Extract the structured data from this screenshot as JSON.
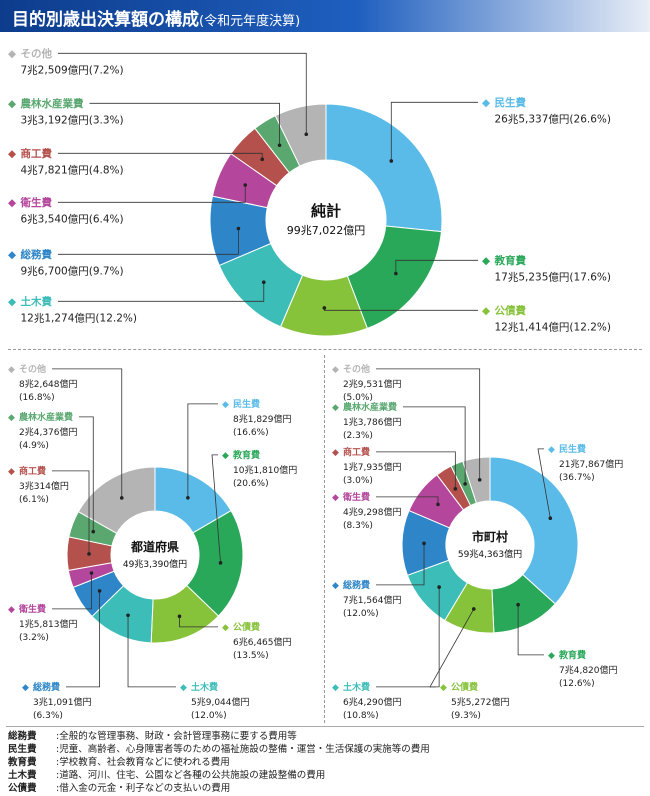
{
  "header": {
    "title": "目的別歳出決算額の構成",
    "subtitle": "(令和元年度決算)"
  },
  "colors": {
    "民生費": "#5bbbe8",
    "教育費": "#2aa85a",
    "公債費": "#86c23a",
    "土木費": "#3dbdb8",
    "総務費": "#2e86c8",
    "衛生費": "#b4479c",
    "商工費": "#b5514d",
    "農林水産業費": "#5aa870",
    "その他": "#b4b4b4"
  },
  "chart_data": [
    {
      "type": "pie",
      "title": "純計",
      "total_label": "99兆7,022億円",
      "categories": [
        "民生費",
        "教育費",
        "公債費",
        "土木費",
        "総務費",
        "衛生費",
        "商工費",
        "農林水産業費",
        "その他"
      ],
      "values": [
        26.6,
        17.6,
        12.2,
        12.2,
        9.7,
        6.4,
        4.8,
        3.3,
        7.2
      ],
      "amounts": [
        "26兆5,337億円",
        "17兆5,235億円",
        "12兆1,414億円",
        "12兆1,274億円",
        "9兆6,700億円",
        "6兆3,540億円",
        "4兆7,821億円",
        "3兆3,192億円",
        "7兆2,509億円"
      ],
      "percents": [
        "(26.6%)",
        "(17.6%)",
        "(12.2%)",
        "(12.2%)",
        "(9.7%)",
        "(6.4%)",
        "(4.8%)",
        "(3.3%)",
        "(7.2%)"
      ]
    },
    {
      "type": "pie",
      "title": "都道府県",
      "total_label": "49兆3,390億円",
      "categories": [
        "民生費",
        "教育費",
        "公債費",
        "土木費",
        "総務費",
        "衛生費",
        "商工費",
        "農林水産業費",
        "その他"
      ],
      "values": [
        16.6,
        20.6,
        13.5,
        12.0,
        6.3,
        3.2,
        6.1,
        4.9,
        16.8
      ],
      "amounts": [
        "8兆1,829億円",
        "10兆1,810億円",
        "6兆6,465億円",
        "5兆9,044億円",
        "3兆1,091億円",
        "1兆5,813億円",
        "3兆314億円",
        "2兆4,376億円",
        "8兆2,648億円"
      ],
      "percents": [
        "(16.6%)",
        "(20.6%)",
        "(13.5%)",
        "(12.0%)",
        "(6.3%)",
        "(3.2%)",
        "(6.1%)",
        "(4.9%)",
        "(16.8%)"
      ]
    },
    {
      "type": "pie",
      "title": "市町村",
      "total_label": "59兆4,363億円",
      "categories": [
        "民生費",
        "教育費",
        "公債費",
        "土木費",
        "総務費",
        "衛生費",
        "商工費",
        "農林水産業費",
        "その他"
      ],
      "values": [
        36.7,
        12.6,
        9.3,
        10.8,
        12.0,
        8.3,
        3.0,
        2.3,
        5.0
      ],
      "amounts": [
        "21兆7,867億円",
        "7兆4,820億円",
        "5兆5,272億円",
        "6兆4,290億円",
        "7兆1,564億円",
        "4兆9,298億円",
        "1兆7,935億円",
        "1兆3,786億円",
        "2兆9,531億円"
      ],
      "percents": [
        "(36.7%)",
        "(12.6%)",
        "(9.3%)",
        "(10.8%)",
        "(12.0%)",
        "(8.3%)",
        "(3.0%)",
        "(2.3%)",
        "(5.0%)"
      ]
    }
  ],
  "notes": [
    {
      "term": "総務費",
      "desc": ":全般的な管理事務、財政・会計管理事務に要する費用等"
    },
    {
      "term": "民生費",
      "desc": ":児童、高齢者、心身障害者等のための福祉施設の整備・運営・生活保護の実施等の費用"
    },
    {
      "term": "教育費",
      "desc": ":学校教育、社会教育などに使われる費用"
    },
    {
      "term": "土木費",
      "desc": ":道路、河川、住宅、公園など各種の公共施設の建設整備の費用"
    },
    {
      "term": "公債費",
      "desc": ":借入金の元金・利子などの支払いの費用"
    }
  ]
}
